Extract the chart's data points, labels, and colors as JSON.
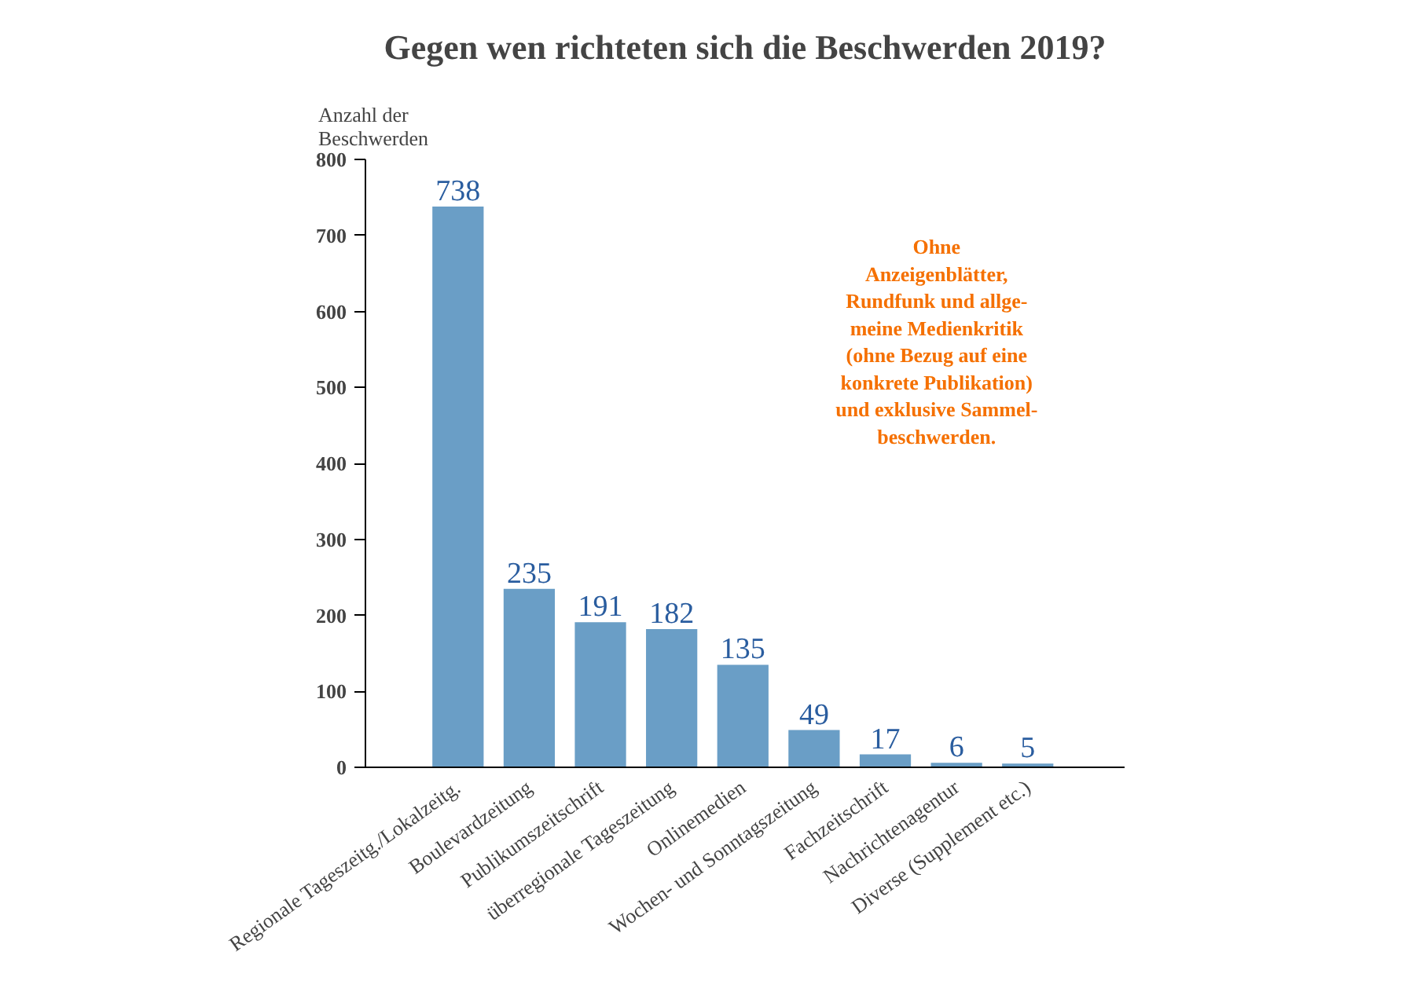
{
  "chart_data": {
    "type": "bar",
    "title": "Gegen wen richteten sich die Beschwerden 2019?",
    "ylabel": "Anzahl der\nBeschwerden",
    "categories": [
      "Regionale Tageszeitg./Lokalzeitg.",
      "Boulevardzeitung",
      "Publikumszeitschrift",
      "überregionale Tageszeitung",
      "Onlinemedien",
      "Wochen- und Sonntagszeitung",
      "Fachzeitschrift",
      "Nachrichtenagentur",
      "Diverse (Supplement etc.)"
    ],
    "values": [
      738,
      235,
      191,
      182,
      135,
      49,
      17,
      6,
      5
    ],
    "color": "#6a9ec6",
    "data_labels": true,
    "ylim": [
      0,
      800
    ],
    "yticks": [
      0,
      100,
      200,
      300,
      400,
      500,
      600,
      700,
      800
    ],
    "grid": false,
    "annotations": [
      {
        "text": "Ohne\nAnzeigenblätter,\nRundfunk und allge-\nmeine Medienkritik\n(ohne Bezug auf eine\nkonkrete Publikation)\nund exklusive Sammel-\nbeschwerden."
      }
    ]
  }
}
